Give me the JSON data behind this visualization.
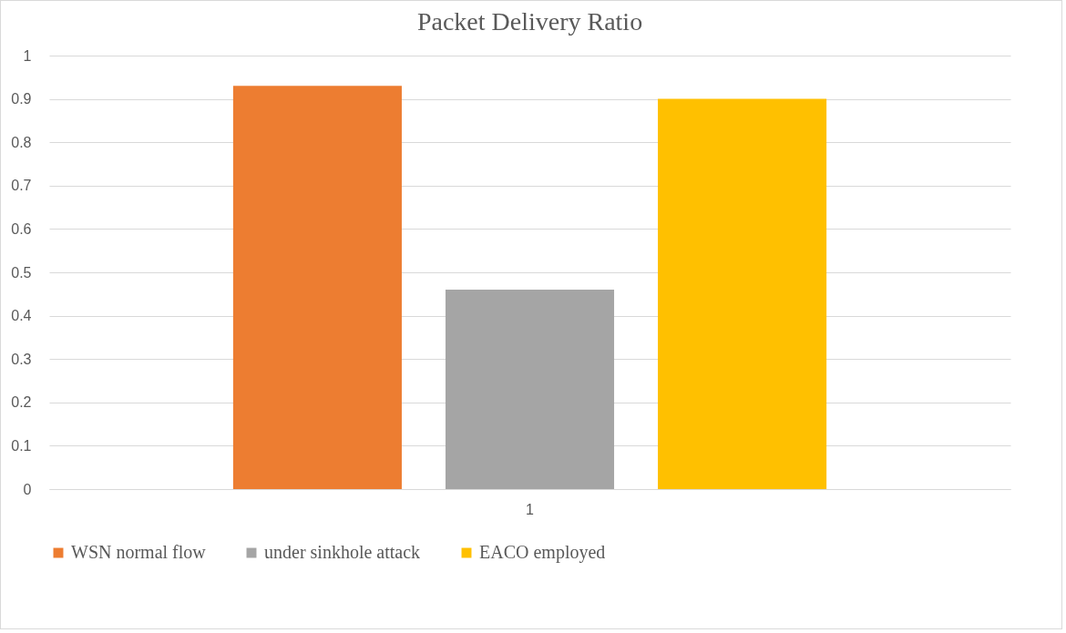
{
  "chart_data": {
    "type": "bar",
    "title": "Packet Delivery Ratio",
    "categories": [
      "1"
    ],
    "series": [
      {
        "name": "WSN normal flow",
        "color": "#ed7d31",
        "values": [
          0.93
        ]
      },
      {
        "name": "under sinkhole attack",
        "color": "#a5a5a5",
        "values": [
          0.46
        ]
      },
      {
        "name": "EACO employed",
        "color": "#ffc000",
        "values": [
          0.9
        ]
      }
    ],
    "ylim": [
      0,
      1
    ],
    "yticks": [
      0,
      0.1,
      0.2,
      0.3,
      0.4,
      0.5,
      0.6,
      0.7,
      0.8,
      0.9,
      1
    ],
    "grid": "y",
    "legend": "bottom"
  }
}
